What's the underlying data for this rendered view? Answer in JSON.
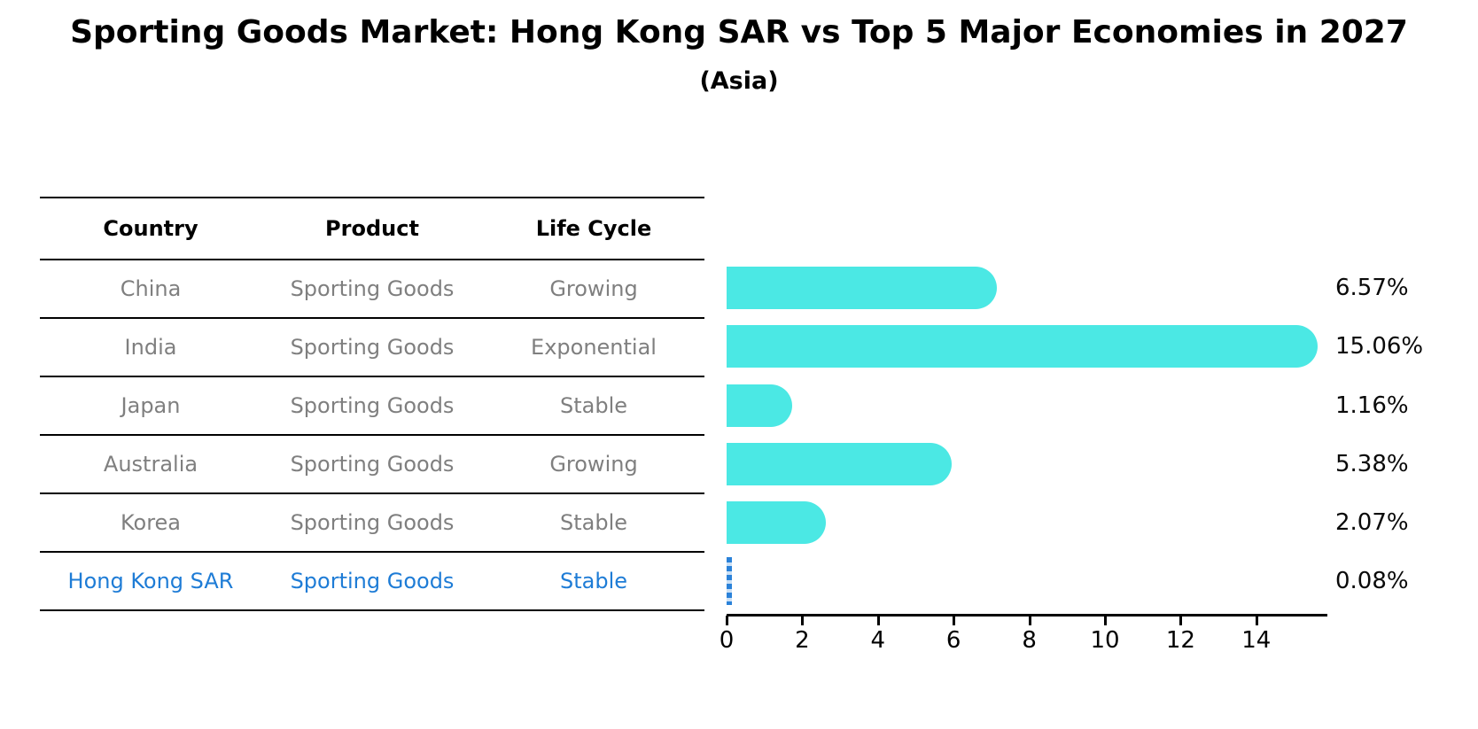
{
  "title": "Sporting Goods Market: Hong Kong SAR vs Top 5 Major Economies in 2027",
  "subtitle": "(Asia)",
  "table": {
    "headers": [
      "Country",
      "Product",
      "Life Cycle"
    ],
    "rows": [
      {
        "country": "China",
        "product": "Sporting Goods",
        "life_cycle": "Growing",
        "highlight": false
      },
      {
        "country": "India",
        "product": "Sporting Goods",
        "life_cycle": "Exponential",
        "highlight": false
      },
      {
        "country": "Japan",
        "product": "Sporting Goods",
        "life_cycle": "Stable",
        "highlight": false
      },
      {
        "country": "Australia",
        "product": "Sporting Goods",
        "life_cycle": "Growing",
        "highlight": false
      },
      {
        "country": "Korea",
        "product": "Sporting Goods",
        "life_cycle": "Stable",
        "highlight": false
      },
      {
        "country": "Hong Kong SAR",
        "product": "Sporting Goods",
        "life_cycle": "Stable",
        "highlight": true
      }
    ]
  },
  "chart_data": {
    "type": "bar",
    "orientation": "horizontal",
    "categories": [
      "China",
      "India",
      "Japan",
      "Australia",
      "Korea",
      "Hong Kong SAR"
    ],
    "values": [
      6.57,
      15.06,
      1.16,
      5.38,
      2.07,
      0.08
    ],
    "value_labels": [
      "6.57%",
      "15.06%",
      "1.16%",
      "5.38%",
      "2.07%",
      "0.08%"
    ],
    "xticks": [
      0,
      2,
      4,
      6,
      8,
      10,
      12,
      14
    ],
    "xlim": [
      0,
      15.85
    ],
    "grid": false,
    "legend": false,
    "xlabel": "",
    "ylabel": "",
    "bar_color": "#4BE8E4",
    "highlight_color": "#2B82D9",
    "highlight_index": 5,
    "highlight_style": "dashed"
  },
  "colors": {
    "title": "#000000",
    "table_text": "#7f7f7f",
    "table_line": "#000000",
    "highlight_text": "#1E7CD6",
    "axis": "#000000",
    "background": "#ffffff"
  }
}
